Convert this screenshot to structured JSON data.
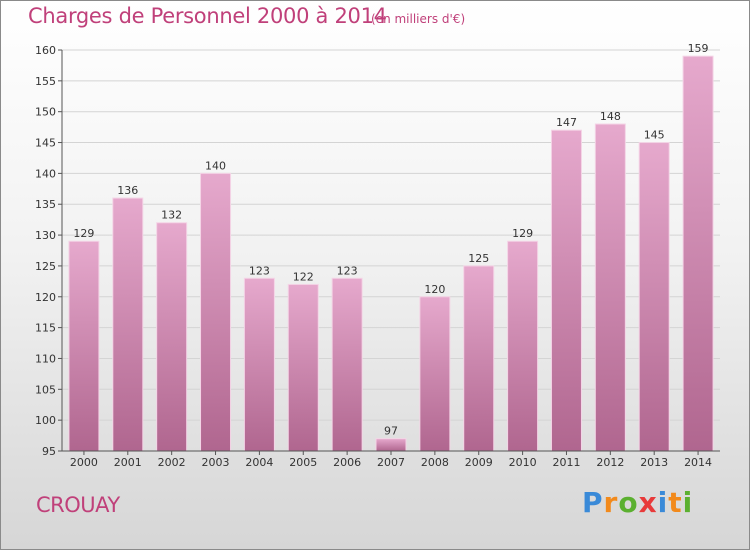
{
  "title": "Charges de Personnel 2000 à 2014",
  "subtitle": "(en milliers d'€)",
  "commune": "CROUAY",
  "logo": {
    "text": "Proxiti",
    "letters": [
      {
        "ch": "P",
        "color": "#3a8ad8"
      },
      {
        "ch": "r",
        "color": "#f28a1c"
      },
      {
        "ch": "o",
        "color": "#5bb030"
      },
      {
        "ch": "x",
        "color": "#e83a3a"
      },
      {
        "ch": "i",
        "color": "#3a8ad8"
      },
      {
        "ch": "t",
        "color": "#f28a1c"
      },
      {
        "ch": "i",
        "color": "#5bb030"
      }
    ]
  },
  "colors": {
    "bar_top": "#e6a9cd",
    "bar_bottom": "#b0668f",
    "title": "#c0407a"
  },
  "chart_data": {
    "type": "bar",
    "title": "Charges de Personnel 2000 à 2014",
    "subtitle": "(en milliers d'€)",
    "categories": [
      "2000",
      "2001",
      "2002",
      "2003",
      "2004",
      "2005",
      "2006",
      "2007",
      "2008",
      "2009",
      "2010",
      "2011",
      "2012",
      "2013",
      "2014"
    ],
    "values": [
      129,
      136,
      132,
      140,
      123,
      122,
      123,
      97,
      120,
      125,
      129,
      147,
      148,
      145,
      159
    ],
    "ylim": [
      95,
      160
    ],
    "yticks": [
      95,
      100,
      105,
      110,
      115,
      120,
      125,
      130,
      135,
      140,
      145,
      150,
      155,
      160
    ],
    "grid": true,
    "xlabel": "",
    "ylabel": ""
  }
}
